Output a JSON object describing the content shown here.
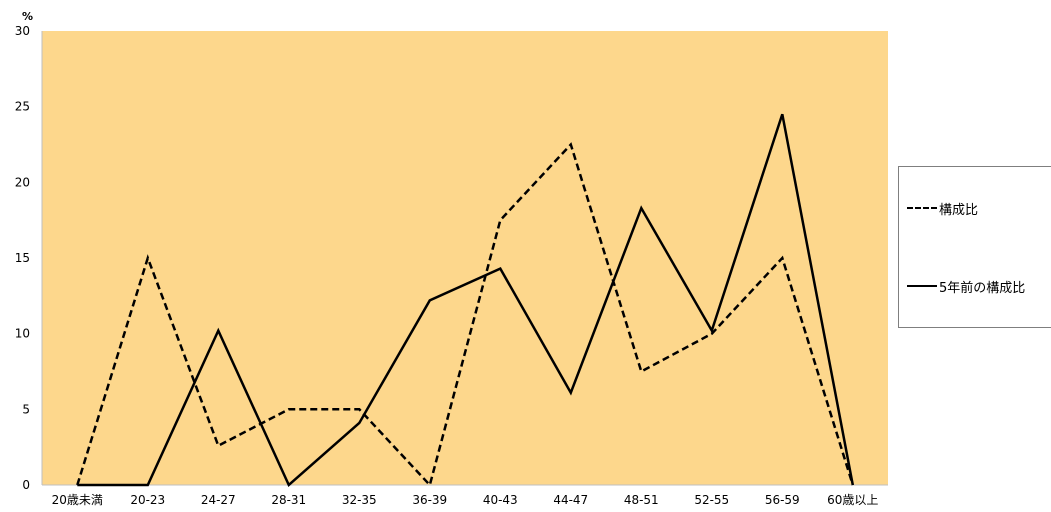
{
  "chart_data": {
    "type": "line",
    "unit_label": "%",
    "ylim": [
      0,
      30
    ],
    "yticks": [
      0,
      5,
      10,
      15,
      20,
      25,
      30
    ],
    "categories": [
      "20歳未満",
      "20-23",
      "24-27",
      "28-31",
      "32-35",
      "36-39",
      "40-43",
      "44-47",
      "48-51",
      "52-55",
      "56-59",
      "60歳以上"
    ],
    "series": [
      {
        "name": "構成比",
        "style": "dashed",
        "color": "#000000",
        "values": [
          0,
          15,
          2.6,
          5,
          5,
          0,
          17.5,
          22.5,
          7.5,
          10,
          15,
          0
        ]
      },
      {
        "name": "5年前の構成比",
        "style": "solid",
        "color": "#000000",
        "values": [
          0,
          0,
          10.2,
          0,
          4.1,
          12.2,
          14.3,
          6.1,
          18.3,
          10.2,
          24.5,
          0
        ]
      }
    ],
    "plot_background": "#fdd78c",
    "legend_position": "right",
    "grid": false
  }
}
